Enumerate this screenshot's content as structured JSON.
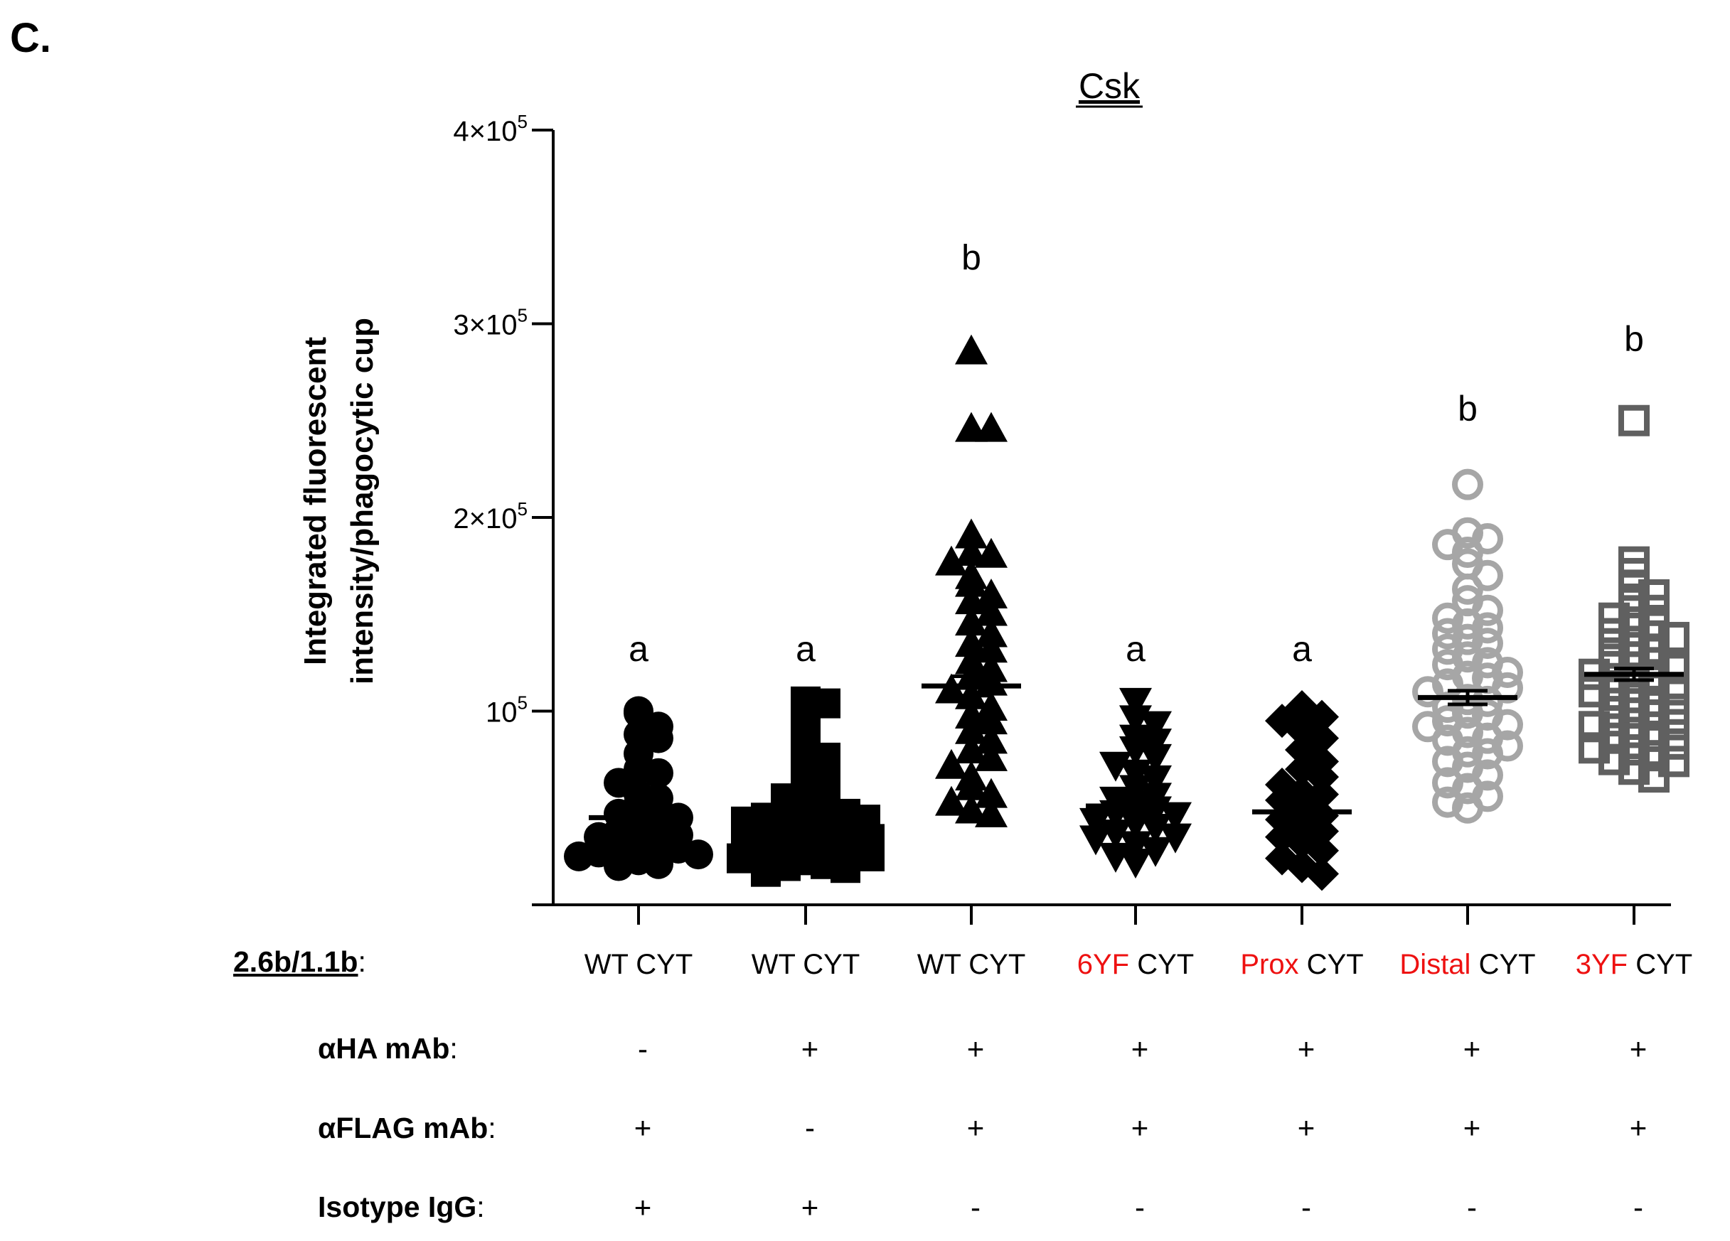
{
  "panel_label": "C.",
  "chart_data": {
    "type": "scatter",
    "title": "Csk",
    "ylabel_lines": [
      "Integrated fluorescent",
      "intensity/phagocytic cup"
    ],
    "ylim": [
      0,
      400000
    ],
    "y_ticks": [
      {
        "value": 100000,
        "mantissa": "",
        "exp": "5"
      },
      {
        "value": 200000,
        "mantissa": "2",
        "exp": "5"
      },
      {
        "value": 300000,
        "mantissa": "3",
        "exp": "5"
      },
      {
        "value": 400000,
        "mantissa": "4",
        "exp": "5"
      }
    ],
    "tick_base": "10",
    "tick_times": "×",
    "groups": [
      {
        "name": "WT CYT (αHA -)",
        "marker": "circle-filled",
        "color": "#000000",
        "mean": 45000,
        "sem": 1500,
        "letter": "a",
        "letter_y": 131000,
        "values": [
          100000,
          99000,
          92000,
          88000,
          86000,
          78000,
          70000,
          68000,
          63000,
          57000,
          52000,
          48000,
          45000,
          42000,
          40000,
          36000,
          33000,
          31000,
          29000,
          27000,
          25000,
          23000,
          21000,
          20000,
          35000,
          55000,
          47000,
          30000,
          26000,
          38000
        ]
      },
      {
        "name": "WT CYT (αFLAG -)",
        "marker": "square-filled",
        "color": "#000000",
        "mean": 39000,
        "sem": 1500,
        "letter": "a",
        "letter_y": 131000,
        "values": [
          105000,
          104000,
          96000,
          89000,
          80000,
          76000,
          70000,
          63000,
          59000,
          56000,
          52000,
          50000,
          47000,
          45000,
          43000,
          41000,
          39000,
          37000,
          35000,
          33000,
          31000,
          29000,
          27000,
          25000,
          23000,
          21000,
          19000,
          17000,
          48000,
          44000,
          40000,
          36000,
          32000,
          28000,
          24000,
          20000,
          55000,
          38000,
          34000,
          30000
        ]
      },
      {
        "name": "WT CYT",
        "marker": "triangle-up",
        "color": "#000000",
        "mean": 113000,
        "sem": 5000,
        "letter": "b",
        "letter_y": 333000,
        "values": [
          286000,
          246000,
          246000,
          191000,
          182000,
          181000,
          177000,
          170000,
          166000,
          160000,
          157000,
          151000,
          146000,
          140000,
          135000,
          132000,
          126000,
          122000,
          118000,
          115000,
          108000,
          102000,
          98000,
          90000,
          85000,
          80000,
          76000,
          72000,
          66000,
          61000,
          57000,
          53000,
          49000,
          47000,
          111000,
          95000
        ]
      },
      {
        "name": "6YF CYT",
        "marker": "triangle-down",
        "color": "#000000",
        "mean": 51000,
        "sem": 2000,
        "letter": "a",
        "letter_y": 131000,
        "values": [
          105000,
          96000,
          93000,
          86000,
          84000,
          80000,
          76000,
          72000,
          68000,
          65000,
          60000,
          56000,
          52000,
          49000,
          46000,
          43000,
          40000,
          37000,
          34000,
          31000,
          28000,
          25000,
          22000,
          54000,
          47000,
          42000,
          35000
        ]
      },
      {
        "name": "Prox CYT",
        "marker": "diamond-filled",
        "color": "#000000",
        "mean": 48000,
        "sem": 2000,
        "letter": "a",
        "letter_y": 131000,
        "values": [
          102000,
          99000,
          97000,
          95000,
          90000,
          86000,
          80000,
          74000,
          70000,
          66000,
          62000,
          58000,
          54000,
          50000,
          46000,
          42000,
          38000,
          35000,
          32000,
          28000,
          24000,
          20000,
          16000,
          44000,
          57000
        ]
      },
      {
        "name": "Distal CYT",
        "marker": "circle-open",
        "color": "#a6a6a6",
        "mean": 107000,
        "sem": 3500,
        "letter": "b",
        "letter_y": 255000,
        "values": [
          217000,
          192000,
          189000,
          186000,
          182000,
          176000,
          170000,
          163000,
          157000,
          152000,
          148000,
          143000,
          140000,
          137000,
          132000,
          128000,
          124000,
          120000,
          117000,
          114000,
          110000,
          106000,
          102000,
          98000,
          95000,
          92000,
          89000,
          85000,
          82000,
          78000,
          74000,
          71000,
          67000,
          63000,
          60000,
          56000,
          53000,
          50000,
          112000,
          105000,
          99000,
          93000,
          118000,
          125000,
          86000,
          79000,
          135000,
          145000
        ]
      },
      {
        "name": "3YF CYT",
        "marker": "square-open",
        "color": "#606060",
        "mean": 119000,
        "sem": 3000,
        "letter": "b",
        "letter_y": 291000,
        "values": [
          250000,
          177000,
          171000,
          165000,
          160000,
          156000,
          152000,
          148000,
          144000,
          140000,
          136000,
          132000,
          128000,
          125000,
          122000,
          119000,
          116000,
          113000,
          110000,
          107000,
          104000,
          101000,
          98000,
          95000,
          92000,
          89000,
          86000,
          83000,
          80000,
          77000,
          74000,
          70000,
          66000,
          123000,
          117000,
          111000,
          105000,
          99000,
          93000,
          87000,
          130000,
          138000,
          146000,
          81000,
          75000
        ]
      }
    ]
  },
  "table": {
    "rows": [
      {
        "label": "2.6b/1.1b",
        "colon": ":"
      },
      {
        "label": "αHA mAb",
        "colon": ":"
      },
      {
        "label": "αFLAG mAb",
        "colon": ":"
      },
      {
        "label": "Isotype IgG",
        "colon": ":"
      }
    ],
    "constructs": [
      {
        "prefix": "",
        "mut": "",
        "suffix": "WT CYT"
      },
      {
        "prefix": "",
        "mut": "",
        "suffix": "WT CYT"
      },
      {
        "prefix": "",
        "mut": "",
        "suffix": "WT CYT"
      },
      {
        "prefix": "",
        "mut": "6YF",
        "suffix": " CYT"
      },
      {
        "prefix": "",
        "mut": "Prox",
        "suffix": " CYT"
      },
      {
        "prefix": "",
        "mut": "Distal",
        "suffix": " CYT"
      },
      {
        "prefix": "",
        "mut": "3YF",
        "suffix": " CYT"
      }
    ],
    "ha": [
      "-",
      "+",
      "+",
      "+",
      "+",
      "+",
      "+"
    ],
    "flag": [
      "+",
      "-",
      "+",
      "+",
      "+",
      "+",
      "+"
    ],
    "igg": [
      "+",
      "+",
      "-",
      "-",
      "-",
      "-",
      "-"
    ],
    "mutation_color": "#ee1111"
  }
}
